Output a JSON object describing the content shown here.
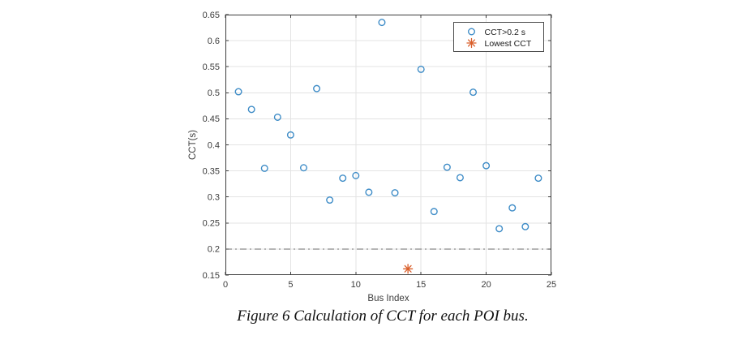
{
  "figure": {
    "caption": "Figure 6 Calculation of CCT for each POI bus.",
    "background_color": "#ffffff"
  },
  "chart_data": {
    "type": "scatter",
    "title": "",
    "xlabel": "Bus Index",
    "ylabel": "CCT(s)",
    "xlim": [
      0,
      25
    ],
    "ylim": [
      0.15,
      0.65
    ],
    "xticks": [
      0,
      5,
      10,
      15,
      20,
      25
    ],
    "yticks": [
      0.15,
      0.2,
      0.25,
      0.3,
      0.35,
      0.4,
      0.45,
      0.5,
      0.55,
      0.6,
      0.65
    ],
    "grid": true,
    "legend_position": "top-right",
    "series": [
      {
        "name": "CCT>0.2 s",
        "marker": "circle",
        "color": "#3E8CC7",
        "x": [
          1,
          2,
          3,
          4,
          5,
          6,
          7,
          8,
          9,
          10,
          11,
          12,
          13,
          15,
          16,
          17,
          18,
          19,
          20,
          21,
          22,
          23,
          24
        ],
        "y": [
          0.502,
          0.468,
          0.355,
          0.453,
          0.419,
          0.356,
          0.508,
          0.294,
          0.336,
          0.341,
          0.309,
          0.635,
          0.308,
          0.545,
          0.272,
          0.357,
          0.337,
          0.501,
          0.36,
          0.239,
          0.279,
          0.243,
          0.336
        ]
      },
      {
        "name": "Lowest CCT",
        "marker": "asterisk",
        "color": "#D95F2B",
        "x": [
          14
        ],
        "y": [
          0.162
        ]
      }
    ],
    "threshold_line": {
      "y": 0.2,
      "style": "dash-dot",
      "color": "#6b6b6b"
    }
  },
  "style": {
    "grid_color": "#e3e3e3",
    "axis_color": "#3c3c3c",
    "tick_label_color": "#3c3c3c",
    "legend_border_color": "#4a4a4a",
    "legend_text_color": "#1a1a1a"
  }
}
